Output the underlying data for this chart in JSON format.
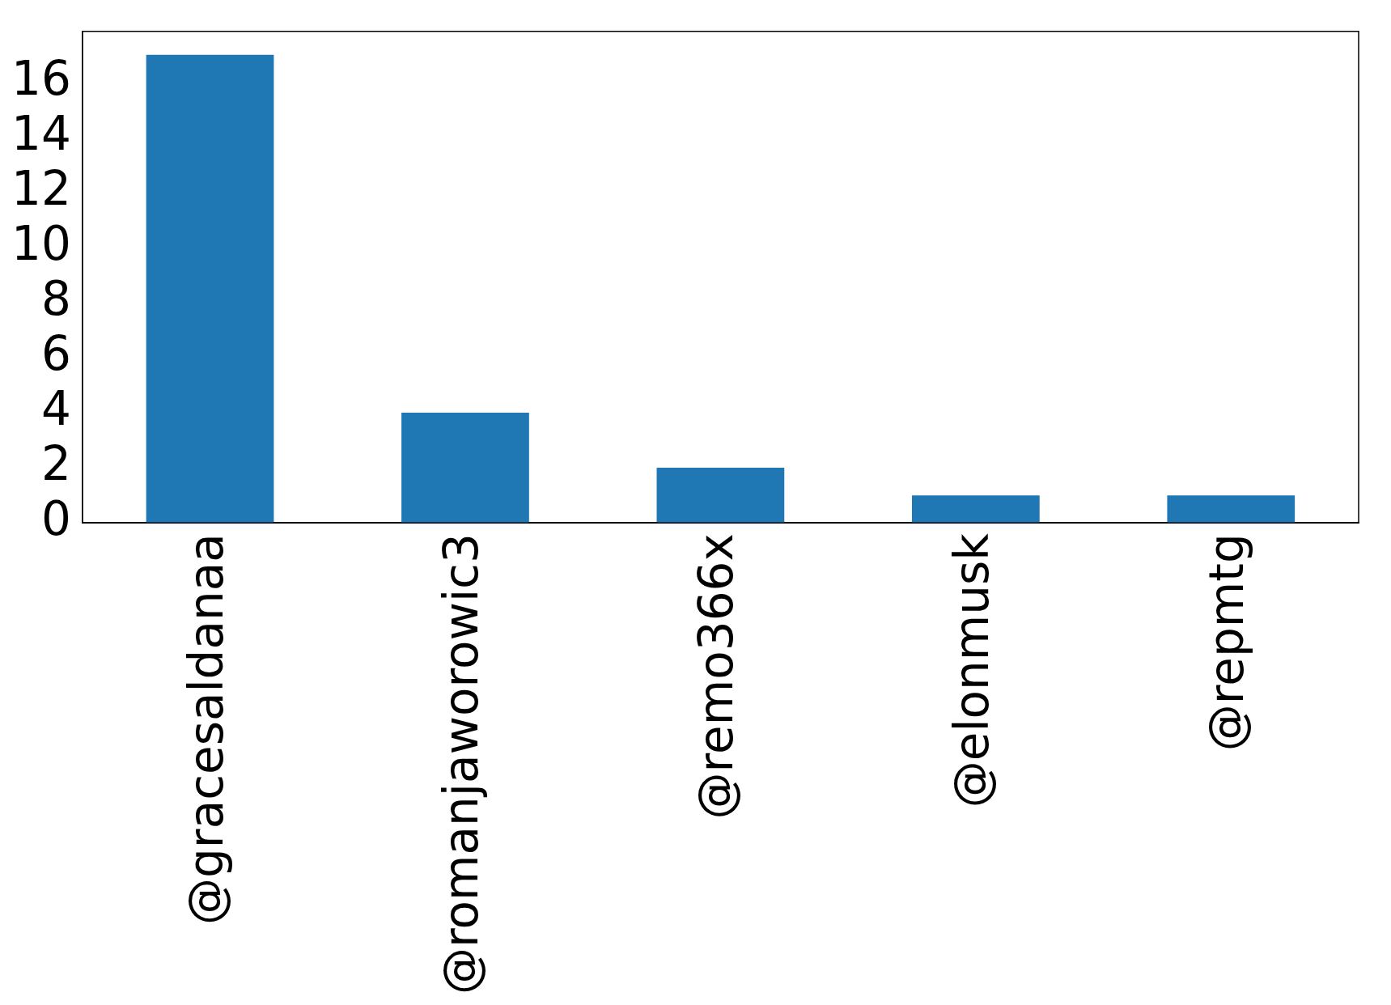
{
  "chart_data": {
    "type": "bar",
    "categories": [
      "@gracesaldanaa",
      "@romanjaworowic3",
      "@remo366x",
      "@elonmusk",
      "@repmtg"
    ],
    "values": [
      17,
      4,
      2,
      1,
      1
    ],
    "color": "#1f77b4",
    "ylim": [
      0,
      17.85
    ],
    "yticks": [
      0,
      2,
      4,
      6,
      8,
      10,
      12,
      14,
      16
    ],
    "grid": false,
    "legend": false
  }
}
